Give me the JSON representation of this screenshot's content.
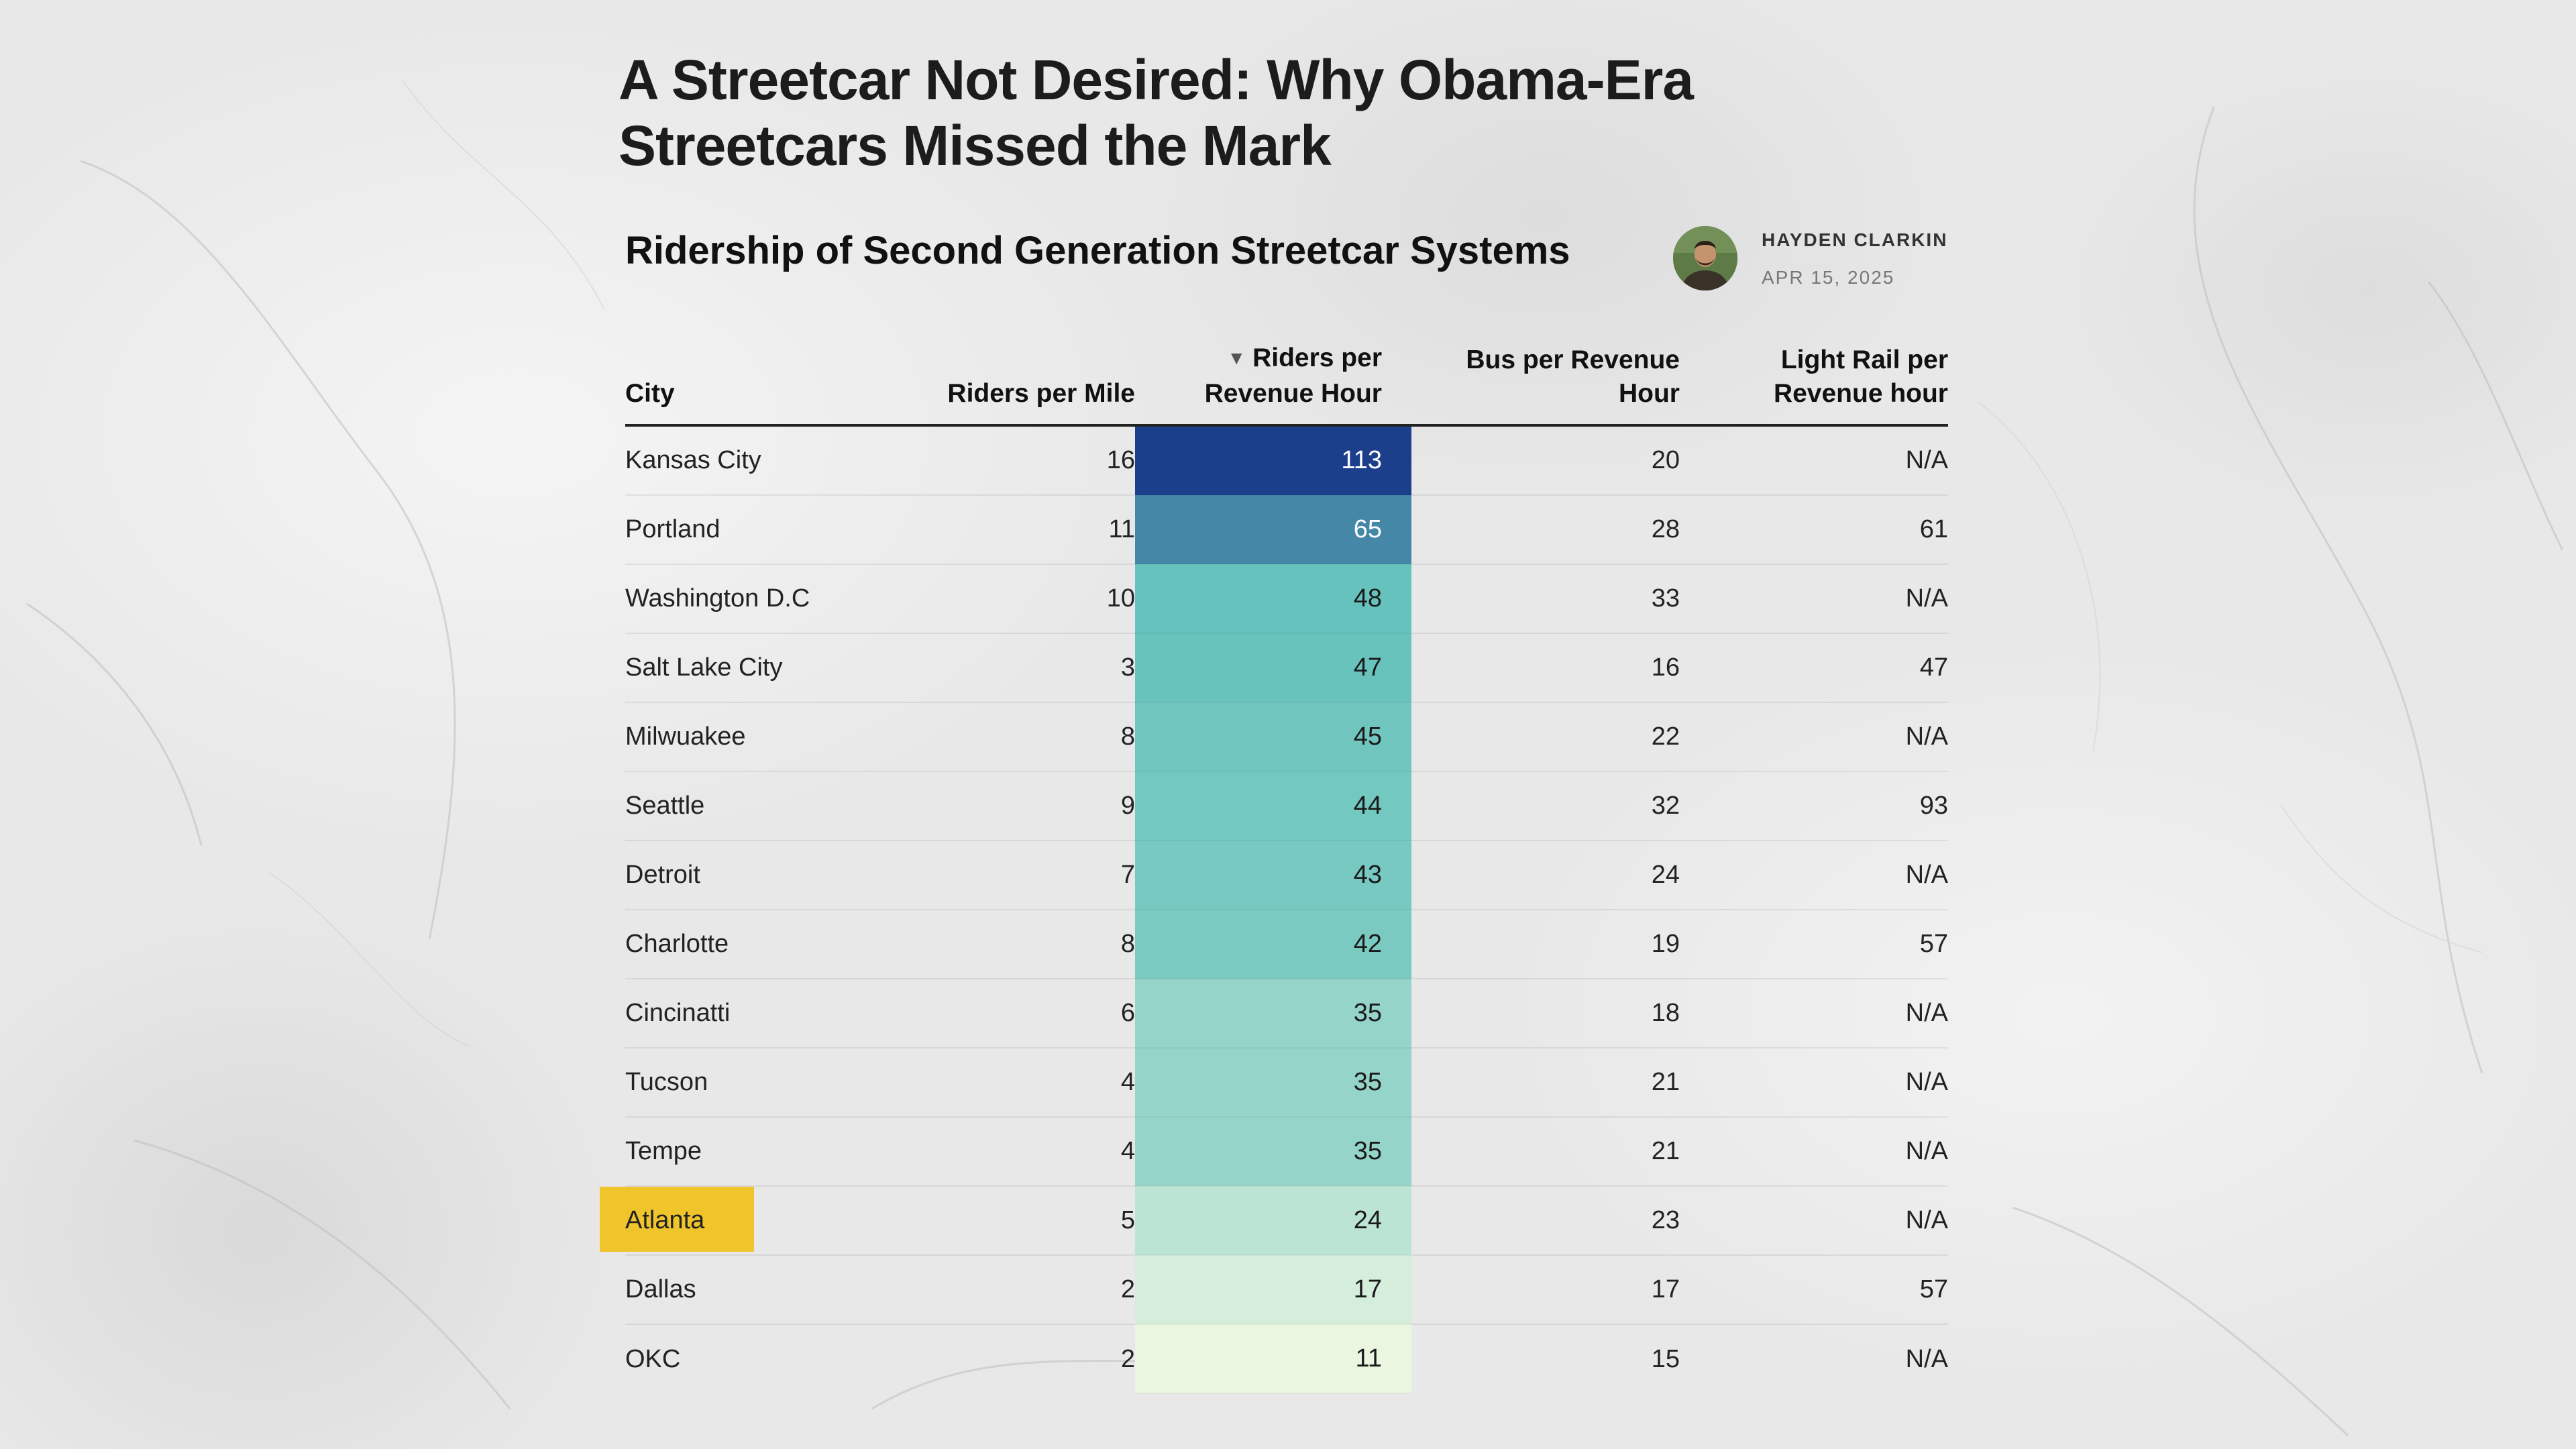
{
  "article": {
    "headline_line1": "A Streetcar Not Desired: Why Obama-Era",
    "headline_line2": "Streetcars Missed the Mark",
    "author": "HAYDEN CLARKIN",
    "date": "APR 15, 2025"
  },
  "chart_data": {
    "type": "table",
    "title": "Ridership of Second Generation Streetcar Systems",
    "columns": [
      "City",
      "Riders per Mile",
      "Riders per Revenue Hour",
      "Bus per Revenue Hour",
      "Light Rail per Revenue hour"
    ],
    "sorted_column": "Riders per Revenue Hour",
    "sort_order": "descending",
    "highlighted_city": "Atlanta",
    "highlight_color": "#efc52b",
    "heat_colors": {
      "low": "#ebf6e1",
      "mid": "#65c2bc",
      "high": "#1c3f8c"
    },
    "rows": [
      {
        "city": "Kansas City",
        "riders_per_mile": 16,
        "riders_per_revenue_hour": 113,
        "bus_per_revenue_hour": 20,
        "light_rail_per_revenue_hour": "N/A"
      },
      {
        "city": "Portland",
        "riders_per_mile": 11,
        "riders_per_revenue_hour": 65,
        "bus_per_revenue_hour": 28,
        "light_rail_per_revenue_hour": 61
      },
      {
        "city": "Washington D.C",
        "riders_per_mile": 10,
        "riders_per_revenue_hour": 48,
        "bus_per_revenue_hour": 33,
        "light_rail_per_revenue_hour": "N/A"
      },
      {
        "city": "Salt Lake City",
        "riders_per_mile": 3,
        "riders_per_revenue_hour": 47,
        "bus_per_revenue_hour": 16,
        "light_rail_per_revenue_hour": 47
      },
      {
        "city": "Milwuakee",
        "riders_per_mile": 8,
        "riders_per_revenue_hour": 45,
        "bus_per_revenue_hour": 22,
        "light_rail_per_revenue_hour": "N/A"
      },
      {
        "city": "Seattle",
        "riders_per_mile": 9,
        "riders_per_revenue_hour": 44,
        "bus_per_revenue_hour": 32,
        "light_rail_per_revenue_hour": 93
      },
      {
        "city": "Detroit",
        "riders_per_mile": 7,
        "riders_per_revenue_hour": 43,
        "bus_per_revenue_hour": 24,
        "light_rail_per_revenue_hour": "N/A"
      },
      {
        "city": "Charlotte",
        "riders_per_mile": 8,
        "riders_per_revenue_hour": 42,
        "bus_per_revenue_hour": 19,
        "light_rail_per_revenue_hour": 57
      },
      {
        "city": "Cincinatti",
        "riders_per_mile": 6,
        "riders_per_revenue_hour": 35,
        "bus_per_revenue_hour": 18,
        "light_rail_per_revenue_hour": "N/A"
      },
      {
        "city": "Tucson",
        "riders_per_mile": 4,
        "riders_per_revenue_hour": 35,
        "bus_per_revenue_hour": 21,
        "light_rail_per_revenue_hour": "N/A"
      },
      {
        "city": "Tempe",
        "riders_per_mile": 4,
        "riders_per_revenue_hour": 35,
        "bus_per_revenue_hour": 21,
        "light_rail_per_revenue_hour": "N/A"
      },
      {
        "city": "Atlanta",
        "riders_per_mile": 5,
        "riders_per_revenue_hour": 24,
        "bus_per_revenue_hour": 23,
        "light_rail_per_revenue_hour": "N/A"
      },
      {
        "city": "Dallas",
        "riders_per_mile": 2,
        "riders_per_revenue_hour": 17,
        "bus_per_revenue_hour": 17,
        "light_rail_per_revenue_hour": 57
      },
      {
        "city": "OKC",
        "riders_per_mile": 2,
        "riders_per_revenue_hour": 11,
        "bus_per_revenue_hour": 15,
        "light_rail_per_revenue_hour": "N/A"
      }
    ]
  }
}
